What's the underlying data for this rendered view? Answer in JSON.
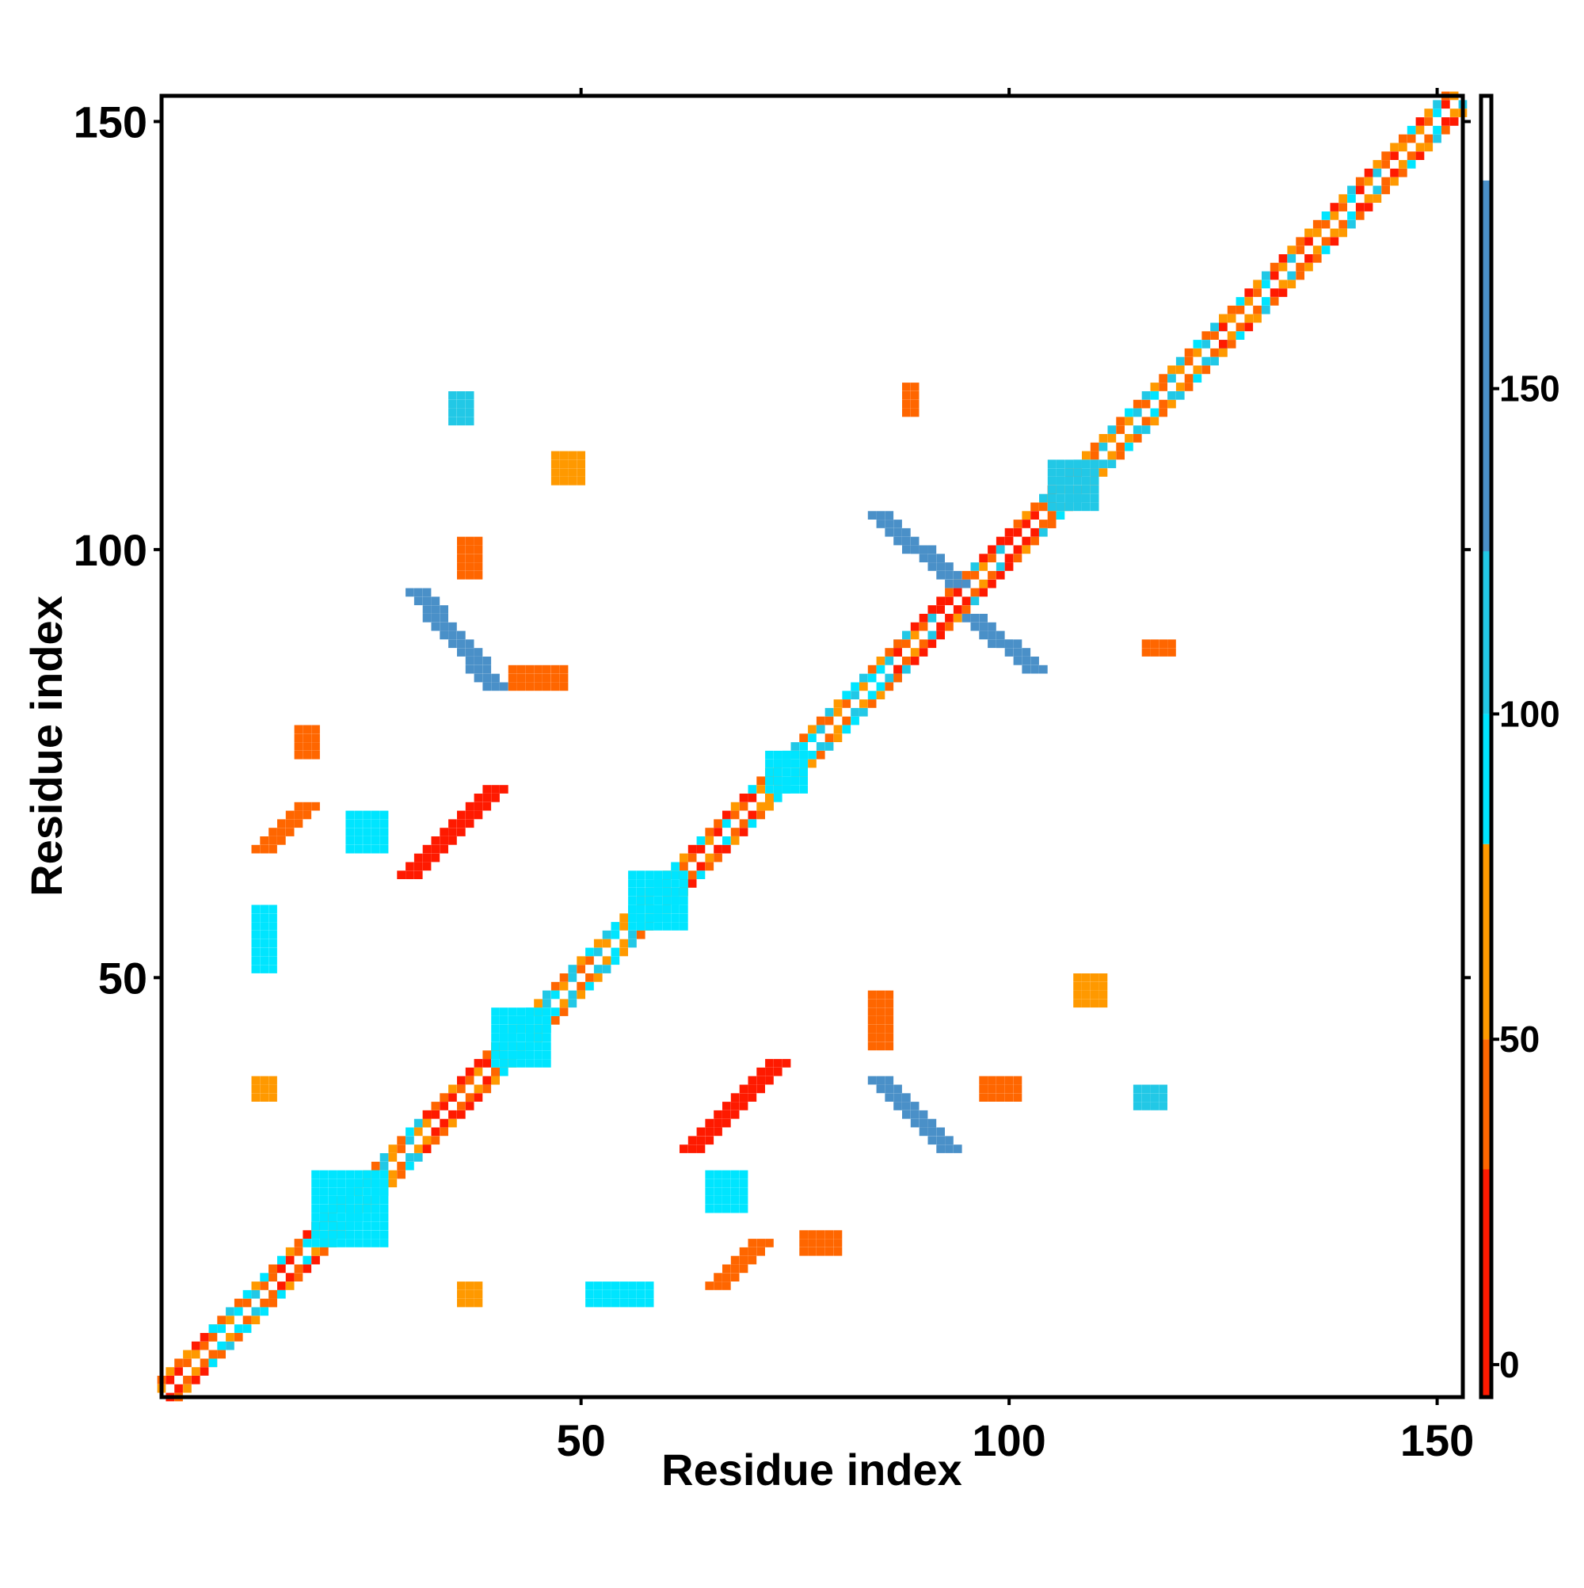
{
  "chart_data": {
    "type": "heatmap",
    "title": "",
    "xlabel": "Residue index",
    "ylabel": "Residue index",
    "xlim": [
      1,
      153
    ],
    "ylim": [
      1,
      153
    ],
    "xticks": [
      50,
      100,
      150
    ],
    "yticks": [
      50,
      100,
      150
    ],
    "xtick_labels": [
      "50",
      "100",
      "150"
    ],
    "ytick_labels": [
      "50",
      "100",
      "150"
    ],
    "grid": false,
    "legend": "right",
    "colorbar": {
      "range": [
        -5,
        195
      ],
      "ticks": [
        0,
        50,
        100,
        150
      ],
      "tick_labels": [
        "0",
        "50",
        "100",
        "150"
      ],
      "bands": [
        {
          "from": -5,
          "to": 30,
          "color": "#ff1a00"
        },
        {
          "from": 30,
          "to": 50,
          "color": "#ff6600"
        },
        {
          "from": 50,
          "to": 80,
          "color": "#ff9900"
        },
        {
          "from": 80,
          "to": 100,
          "color": "#00e5ff"
        },
        {
          "from": 100,
          "to": 125,
          "color": "#22c8e6"
        },
        {
          "from": 125,
          "to": 182,
          "color": "#4a90c8"
        },
        {
          "from": 182,
          "to": 195,
          "color": "#ffffff"
        }
      ]
    },
    "diagonal": [
      {
        "from": 1,
        "to": 7,
        "values": [
          15,
          45,
          60,
          30,
          70,
          20
        ]
      },
      {
        "from": 7,
        "to": 14,
        "values": [
          60,
          95,
          45,
          110,
          30,
          85
        ]
      },
      {
        "from": 14,
        "to": 21,
        "values": [
          15,
          10,
          45,
          95,
          60,
          30
        ]
      },
      {
        "from": 21,
        "to": 32,
        "values": [
          45,
          95,
          110,
          60,
          30,
          100,
          70
        ]
      },
      {
        "from": 32,
        "to": 40,
        "values": [
          10,
          15,
          20,
          45,
          30,
          60
        ]
      },
      {
        "from": 40,
        "to": 62,
        "values": [
          95,
          60,
          110,
          45,
          30,
          100,
          70,
          85,
          60,
          110
        ]
      },
      {
        "from": 62,
        "to": 72,
        "values": [
          45,
          15,
          60,
          10,
          95,
          30
        ]
      },
      {
        "from": 72,
        "to": 87,
        "values": [
          95,
          110,
          45,
          60,
          30,
          100,
          70,
          85
        ]
      },
      {
        "from": 87,
        "to": 105,
        "values": [
          10,
          15,
          20,
          45,
          60,
          30,
          110,
          20
        ]
      },
      {
        "from": 105,
        "to": 125,
        "values": [
          95,
          45,
          110,
          60,
          30,
          70,
          100,
          45
        ]
      },
      {
        "from": 125,
        "to": 153,
        "values": [
          45,
          60,
          30,
          95,
          15,
          70,
          110,
          45,
          20,
          60
        ]
      }
    ],
    "patches": [
      {
        "x": [
          31,
          40
        ],
        "y": [
          84,
          95
        ],
        "value": 150,
        "shape": "anti"
      },
      {
        "x": [
          85,
          94
        ],
        "y": [
          96,
          104
        ],
        "value": 150,
        "shape": "anti"
      },
      {
        "x": [
          96,
          103
        ],
        "y": [
          86,
          92
        ],
        "value": 150,
        "shape": "anti"
      },
      {
        "x": [
          85,
          93
        ],
        "y": [
          30,
          38
        ],
        "value": 150,
        "shape": "anti"
      },
      {
        "x": [
          30,
          40
        ],
        "y": [
          62,
          72
        ],
        "value": 20,
        "shape": "diag"
      },
      {
        "x": [
          63,
          73
        ],
        "y": [
          30,
          40
        ],
        "value": 20,
        "shape": "diag"
      },
      {
        "x": [
          13,
          18
        ],
        "y": [
          65,
          70
        ],
        "value": 45,
        "shape": "diag"
      },
      {
        "x": [
          66,
          71
        ],
        "y": [
          14,
          19
        ],
        "value": 45,
        "shape": "diag"
      },
      {
        "x": [
          17,
          19
        ],
        "y": [
          76,
          79
        ],
        "value": 45,
        "shape": "block"
      },
      {
        "x": [
          76,
          80
        ],
        "y": [
          18,
          20
        ],
        "value": 45,
        "shape": "block"
      },
      {
        "x": [
          19,
          27
        ],
        "y": [
          19,
          27
        ],
        "value": 95,
        "shape": "block"
      },
      {
        "x": [
          40,
          46
        ],
        "y": [
          40,
          46
        ],
        "value": 95,
        "shape": "block"
      },
      {
        "x": [
          72,
          76
        ],
        "y": [
          72,
          76
        ],
        "value": 95,
        "shape": "block"
      },
      {
        "x": [
          56,
          62
        ],
        "y": [
          56,
          62
        ],
        "value": 95,
        "shape": "block"
      },
      {
        "x": [
          105,
          110
        ],
        "y": [
          105,
          110
        ],
        "value": 110,
        "shape": "block"
      },
      {
        "x": [
          12,
          14
        ],
        "y": [
          51,
          58
        ],
        "value": 95,
        "shape": "block"
      },
      {
        "x": [
          51,
          58
        ],
        "y": [
          12,
          14
        ],
        "value": 95,
        "shape": "block"
      },
      {
        "x": [
          36,
          38
        ],
        "y": [
          12,
          14
        ],
        "value": 60,
        "shape": "block"
      },
      {
        "x": [
          12,
          14
        ],
        "y": [
          36,
          38
        ],
        "value": 60,
        "shape": "block"
      },
      {
        "x": [
          47,
          50
        ],
        "y": [
          108,
          111
        ],
        "value": 60,
        "shape": "block"
      },
      {
        "x": [
          108,
          111
        ],
        "y": [
          47,
          50
        ],
        "value": 60,
        "shape": "block"
      },
      {
        "x": [
          42,
          48
        ],
        "y": [
          84,
          86
        ],
        "value": 45,
        "shape": "block"
      },
      {
        "x": [
          84,
          86
        ],
        "y": [
          42,
          48
        ],
        "value": 45,
        "shape": "block"
      },
      {
        "x": [
          65,
          69
        ],
        "y": [
          23,
          27
        ],
        "value": 95,
        "shape": "block"
      },
      {
        "x": [
          23,
          27
        ],
        "y": [
          65,
          69
        ],
        "value": 95,
        "shape": "block"
      },
      {
        "x": [
          116,
          119
        ],
        "y": [
          88,
          89
        ],
        "value": 45,
        "shape": "block"
      },
      {
        "x": [
          88,
          89
        ],
        "y": [
          116,
          119
        ],
        "value": 45,
        "shape": "block"
      },
      {
        "x": [
          115,
          118
        ],
        "y": [
          35,
          37
        ],
        "value": 110,
        "shape": "block"
      },
      {
        "x": [
          35,
          37
        ],
        "y": [
          115,
          118
        ],
        "value": 110,
        "shape": "block"
      },
      {
        "x": [
          97,
          101
        ],
        "y": [
          36,
          38
        ],
        "value": 45,
        "shape": "block"
      },
      {
        "x": [
          36,
          38
        ],
        "y": [
          97,
          101
        ],
        "value": 45,
        "shape": "block"
      }
    ]
  }
}
